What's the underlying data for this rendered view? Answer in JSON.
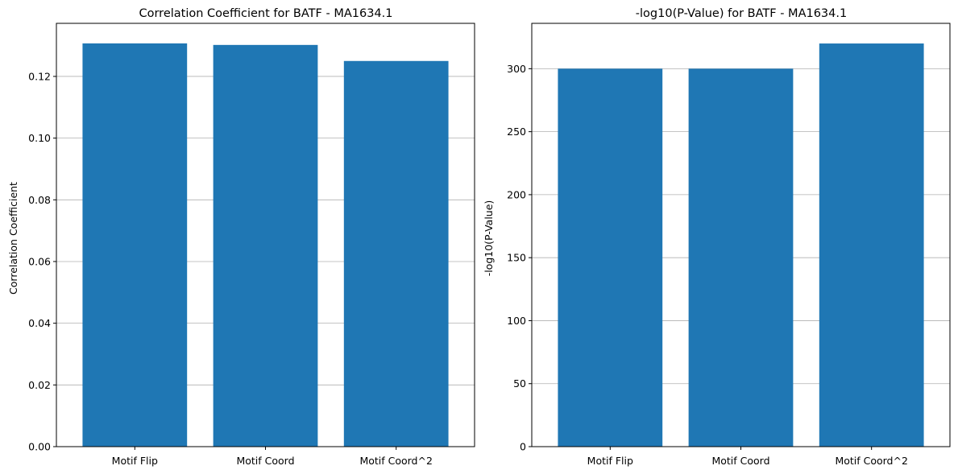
{
  "chart_data": [
    {
      "type": "bar",
      "title": "Correlation Coefficient for BATF - MA1634.1",
      "xlabel": "",
      "ylabel": "Correlation Coefficient",
      "categories": [
        "Motif Flip",
        "Motif Coord",
        "Motif Coord^2"
      ],
      "values": [
        0.1307,
        0.1302,
        0.125
      ],
      "ylim": [
        0,
        0.1372
      ],
      "yticks": [
        0.0,
        0.02,
        0.04,
        0.06,
        0.08,
        0.1,
        0.12
      ],
      "ytick_labels": [
        "0.00",
        "0.02",
        "0.04",
        "0.06",
        "0.08",
        "0.10",
        "0.12"
      ],
      "grid": "y",
      "legend": "none",
      "bar_color": "#1f77b4"
    },
    {
      "type": "bar",
      "title": "-log10(P-Value) for BATF - MA1634.1",
      "xlabel": "",
      "ylabel": "-log10(P-Value)",
      "categories": [
        "Motif Flip",
        "Motif Coord",
        "Motif Coord^2"
      ],
      "values": [
        300,
        300,
        320
      ],
      "ylim": [
        0,
        336
      ],
      "yticks": [
        0,
        50,
        100,
        150,
        200,
        250,
        300
      ],
      "ytick_labels": [
        "0",
        "50",
        "100",
        "150",
        "200",
        "250",
        "300"
      ],
      "grid": "y",
      "legend": "none",
      "bar_color": "#1f77b4"
    }
  ]
}
